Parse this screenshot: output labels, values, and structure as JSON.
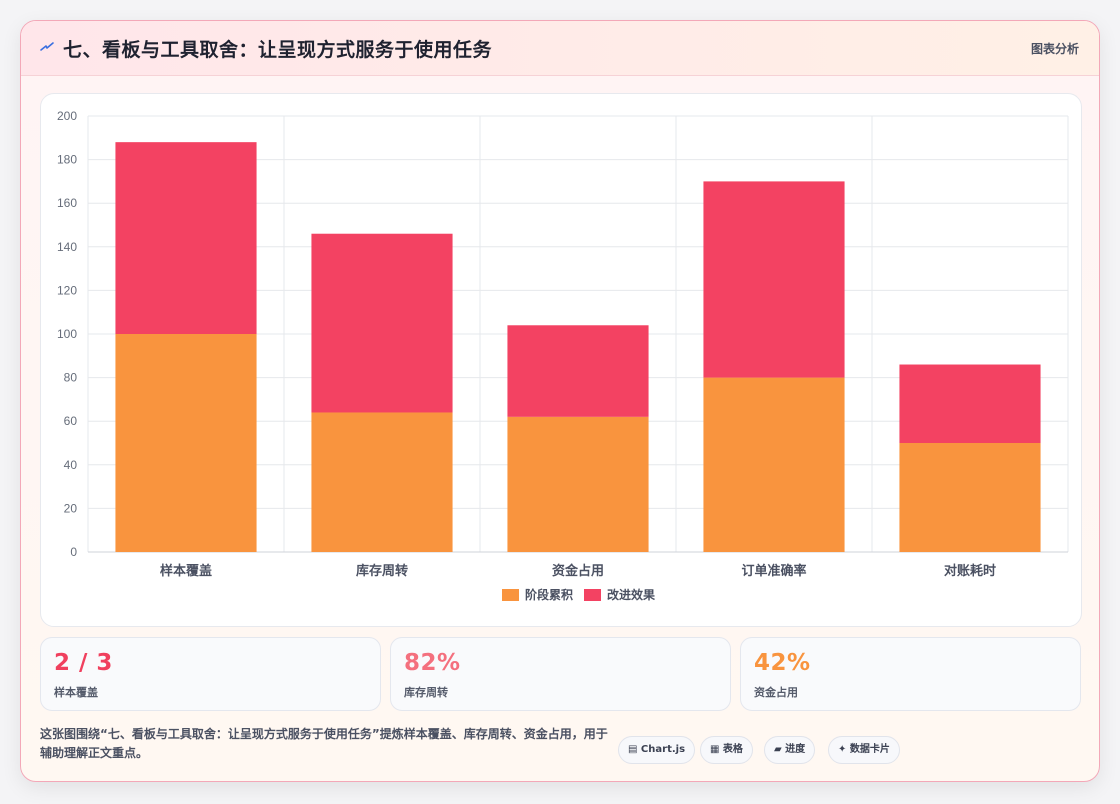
{
  "header": {
    "title": "七、看板与工具取舍：让呈现方式服务于使用任务",
    "tag": "图表分析"
  },
  "colors": {
    "series1": "#f9943e",
    "series2": "#f34262",
    "grid": "#e6e8ec",
    "axis_text": "#666d7a"
  },
  "chart_data": {
    "type": "bar",
    "stacked": true,
    "categories": [
      "样本覆盖",
      "库存周转",
      "资金占用",
      "订单准确率",
      "对账耗时"
    ],
    "series": [
      {
        "name": "阶段累积",
        "values": [
          100,
          64,
          62,
          80,
          50
        ]
      },
      {
        "name": "改进效果",
        "values": [
          88,
          82,
          42,
          90,
          36
        ]
      }
    ],
    "ylim": [
      0,
      200
    ],
    "yticks": [
      0,
      20,
      40,
      60,
      80,
      100,
      120,
      140,
      160,
      180,
      200
    ],
    "grid": true,
    "legend": "bottom-center"
  },
  "stats": [
    {
      "value": "2 / 3",
      "label": "样本覆盖",
      "color": "#f0405e"
    },
    {
      "value": "82%",
      "label": "库存周转",
      "color": "#f4707e"
    },
    {
      "value": "42%",
      "label": "资金占用",
      "color": "#f9943e"
    }
  ],
  "footer": {
    "text": "这张图围绕“七、看板与工具取舍：让呈现方式服务于使用任务”提炼样本覆盖、库存周转、资金占用，用于辅助理解正文重点。",
    "pills": [
      "▤ Chart.js",
      "▦ 表格",
      "▰ 进度",
      "✦ 数据卡片"
    ]
  }
}
